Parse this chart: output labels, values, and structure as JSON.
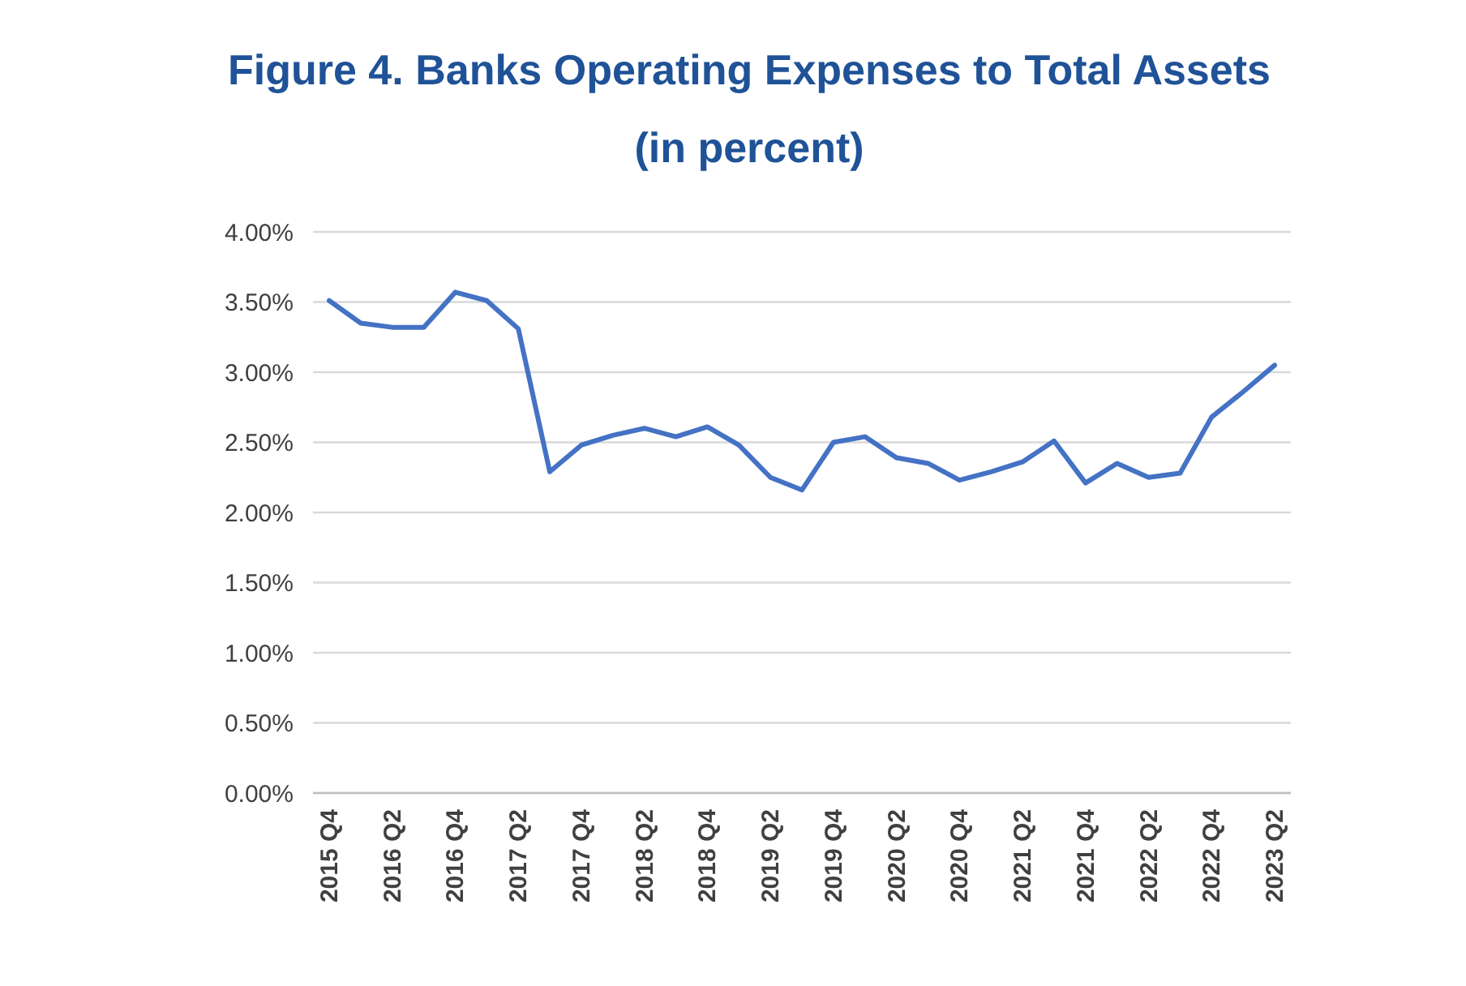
{
  "chart_data": {
    "type": "line",
    "title": "Figure 4. Banks Operating Expenses to Total Assets\n(in percent)",
    "categories": [
      "2015 Q4",
      null,
      "2016 Q2",
      null,
      "2016 Q4",
      null,
      "2017 Q2",
      null,
      "2017 Q4",
      null,
      "2018 Q2",
      null,
      "2018 Q4",
      null,
      "2019 Q2",
      null,
      "2019 Q4",
      null,
      "2020 Q2",
      null,
      "2020 Q4",
      null,
      "2021 Q2",
      null,
      "2021 Q4",
      null,
      "2022 Q2",
      null,
      "2022 Q4",
      null,
      "2023 Q2"
    ],
    "series": [
      {
        "color": "#4472c4",
        "values": [
          3.51,
          3.35,
          3.32,
          3.32,
          3.57,
          3.51,
          3.31,
          2.29,
          2.48,
          2.55,
          2.6,
          2.54,
          2.61,
          2.48,
          2.25,
          2.16,
          2.5,
          2.54,
          2.39,
          2.35,
          2.23,
          2.29,
          2.36,
          2.51,
          2.21,
          2.35,
          2.25,
          2.28,
          2.68,
          2.86,
          3.05
        ]
      }
    ],
    "ylim": [
      0,
      4
    ],
    "yticks": [
      {
        "value": 0,
        "label": "0.00%"
      },
      {
        "value": 0.5,
        "label": "0.50%"
      },
      {
        "value": 1,
        "label": "1.00%"
      },
      {
        "value": 1.5,
        "label": "1.50%"
      },
      {
        "value": 2,
        "label": "2.00%"
      },
      {
        "value": 2.5,
        "label": "2.50%"
      },
      {
        "value": 3,
        "label": "3.00%"
      },
      {
        "value": 3.5,
        "label": "3.50%"
      },
      {
        "value": 4,
        "label": "4.00%"
      }
    ],
    "grid": "y",
    "line_style": "solid"
  }
}
